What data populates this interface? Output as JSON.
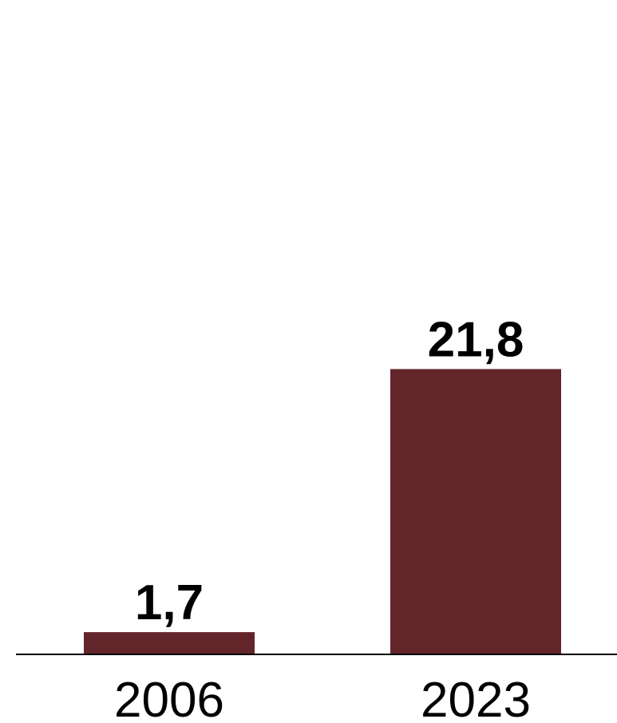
{
  "chart_data": {
    "type": "bar",
    "title": "",
    "xlabel": "",
    "ylabel": "",
    "categories": [
      "2006",
      "2023"
    ],
    "values": [
      1.7,
      21.8
    ],
    "data_labels": [
      "1,7",
      "21,8"
    ],
    "ylim": [
      0,
      50
    ],
    "grid": false,
    "legend": "none",
    "bar_color": "#62252a",
    "axis_color": "#000000"
  }
}
